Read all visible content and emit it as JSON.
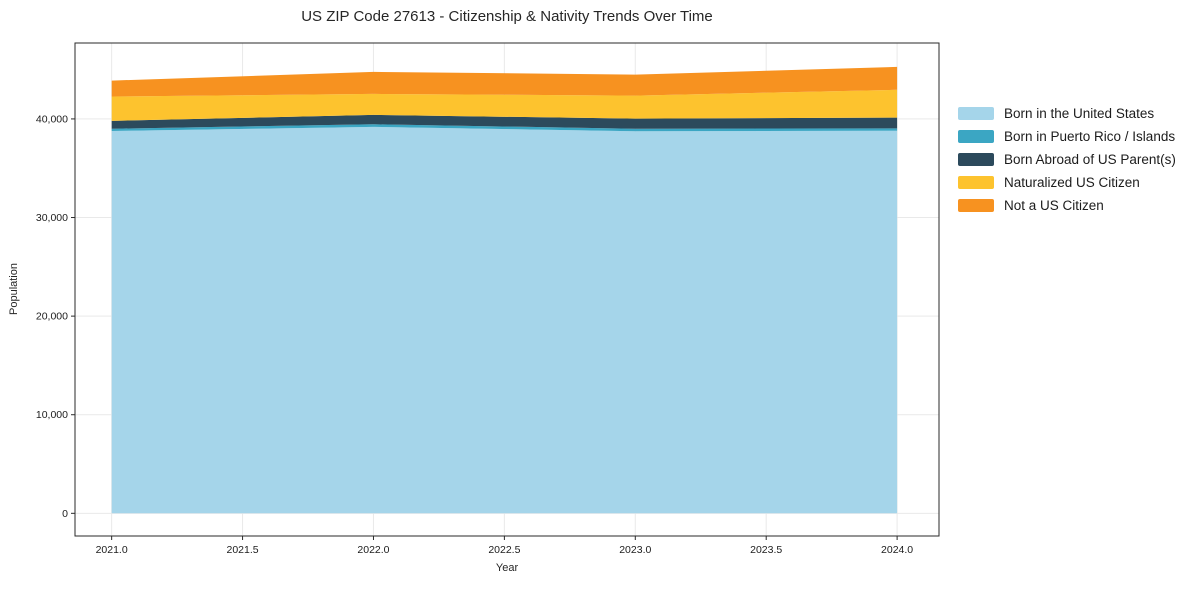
{
  "title": "US ZIP Code 27613 - Citizenship & Nativity Trends Over Time",
  "chart_data": {
    "type": "area",
    "stacked": true,
    "title": "US ZIP Code 27613 - Citizenship & Nativity Trends Over Time",
    "xlabel": "Year",
    "ylabel": "Population",
    "x": [
      2021,
      2022,
      2023,
      2024
    ],
    "series": [
      {
        "name": "Born in the United States",
        "color": "#a5d5ea",
        "values": [
          38780,
          39190,
          38740,
          38810
        ]
      },
      {
        "name": "Born in Puerto Rico / Islands",
        "color": "#3ba6c3",
        "values": [
          230,
          260,
          270,
          230
        ]
      },
      {
        "name": "Born Abroad of US Parent(s)",
        "color": "#2c4a5c",
        "values": [
          790,
          960,
          1020,
          1090
        ]
      },
      {
        "name": "Naturalized US Citizen",
        "color": "#fdc32e",
        "values": [
          2470,
          2130,
          2340,
          2820
        ]
      },
      {
        "name": "Not a US Citizen",
        "color": "#f79220",
        "values": [
          1620,
          2230,
          2130,
          2330
        ]
      }
    ],
    "stack_totals": [
      43890,
      44770,
      44500,
      45280
    ],
    "xlim": [
      2020.86,
      2024.16
    ],
    "ylim": [
      -2300,
      47700
    ],
    "xticks": [
      2021.0,
      2021.5,
      2022.0,
      2022.5,
      2023.0,
      2023.5,
      2024.0
    ],
    "xtick_labels": [
      "2021.0",
      "2021.5",
      "2022.0",
      "2022.5",
      "2023.0",
      "2023.5",
      "2024.0"
    ],
    "yticks": [
      0,
      10000,
      20000,
      30000,
      40000
    ],
    "ytick_labels": [
      "0",
      "10,000",
      "20,000",
      "30,000",
      "40,000"
    ],
    "grid": true,
    "legend_position": "right of plot"
  }
}
